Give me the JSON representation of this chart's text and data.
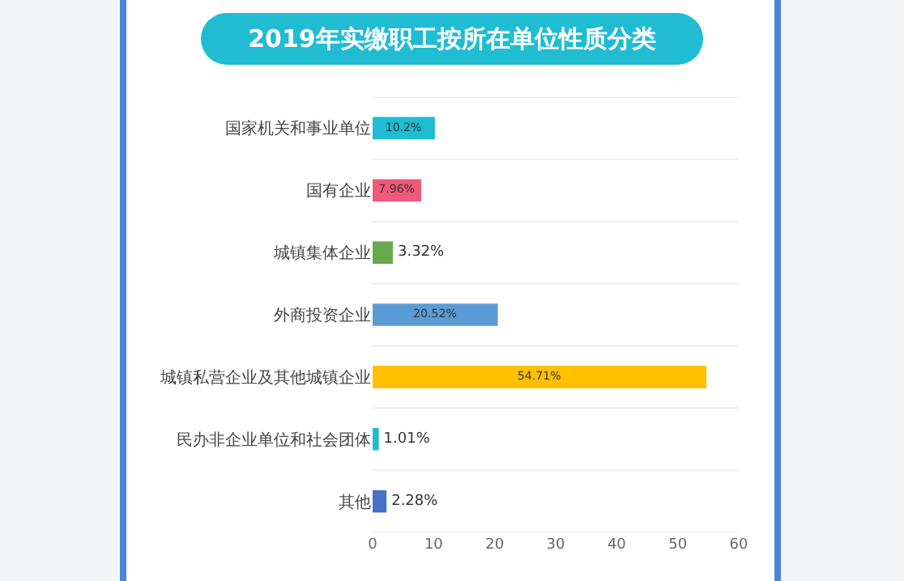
{
  "chart_data": {
    "type": "bar",
    "orientation": "horizontal",
    "title": "2019年实缴职工按所在单位性质分类",
    "categories": [
      "国家机关和事业单位",
      "国有企业",
      "城镇集体企业",
      "外商投资企业",
      "城镇私营企业及其他城镇企业",
      "民办非企业单位和社会团体",
      "其他"
    ],
    "values": [
      10.2,
      7.96,
      3.32,
      20.52,
      54.71,
      1.01,
      2.28
    ],
    "colors": [
      "#1fbcd2",
      "#f0597a",
      "#6aa84f",
      "#5b9bd5",
      "#ffc000",
      "#1fbcd2",
      "#4472c4"
    ],
    "value_labels": [
      "10.2%",
      "7.96%",
      "3.32%",
      "20.52%",
      "54.71%",
      "1.01%",
      "2.28%"
    ],
    "xlim": [
      0,
      60
    ],
    "xticks": [
      0,
      10,
      20,
      30,
      40,
      50,
      60
    ],
    "grid": "y"
  }
}
